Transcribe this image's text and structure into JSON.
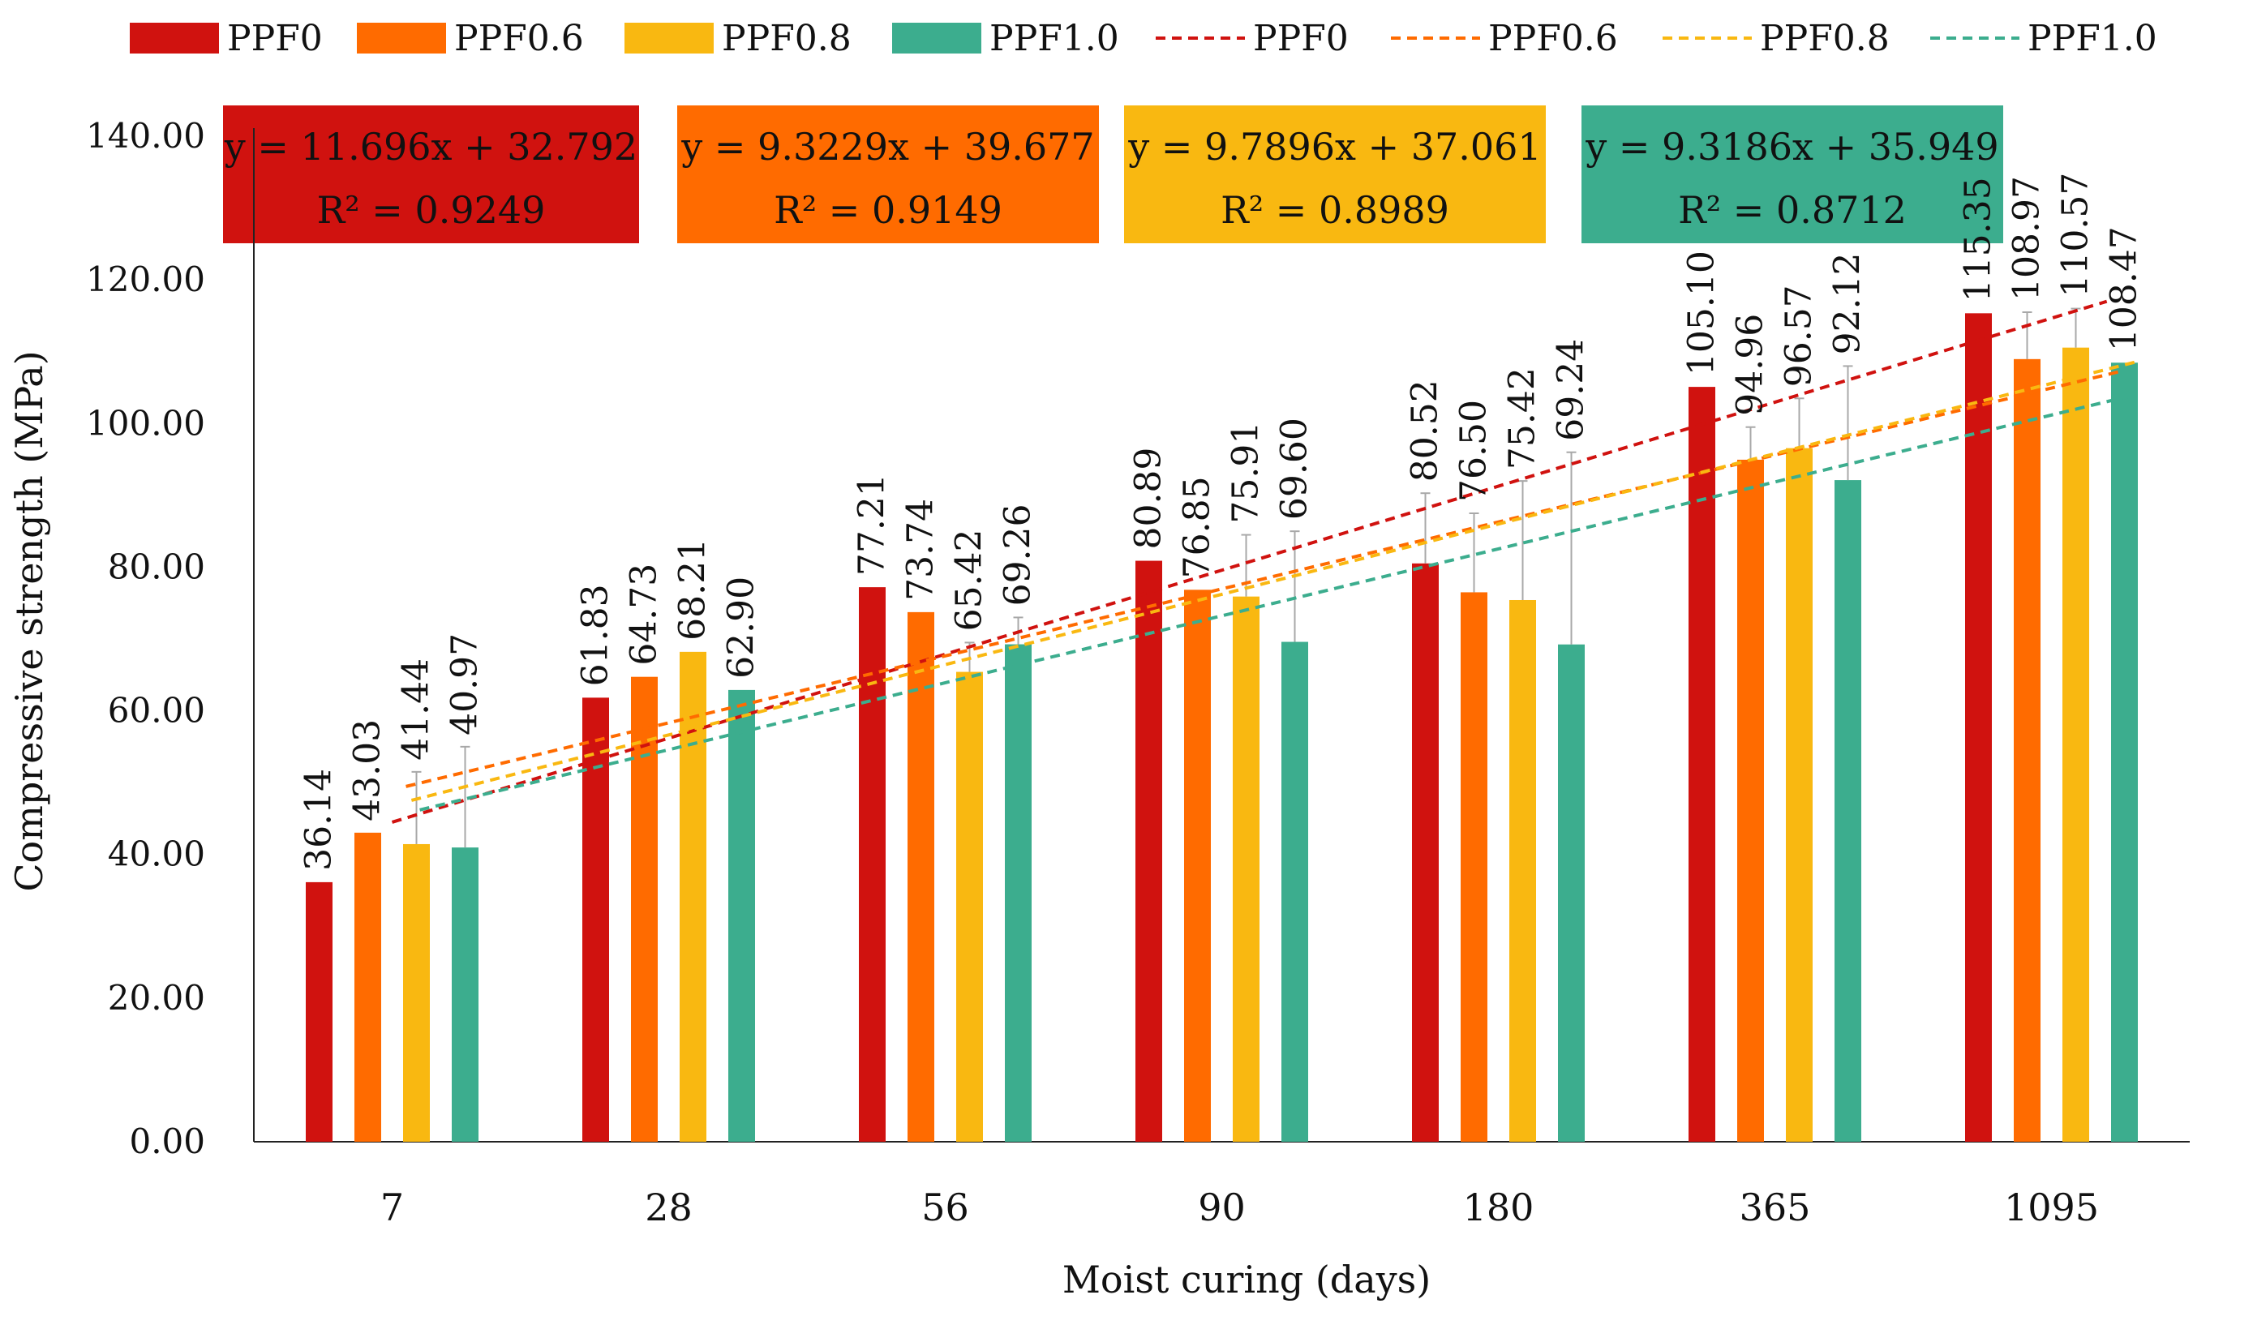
{
  "chart_data": {
    "type": "bar",
    "xlabel": "Moist curing (days)",
    "ylabel": "Compressive strength (MPa)",
    "ylim": [
      0,
      140
    ],
    "yticks": [
      0,
      20,
      40,
      60,
      80,
      100,
      120,
      140
    ],
    "ytick_labels": [
      "0.00",
      "20.00",
      "40.00",
      "60.00",
      "80.00",
      "100.00",
      "120.00",
      "140.00"
    ],
    "categories": [
      "7",
      "28",
      "56",
      "90",
      "180",
      "365",
      "1095"
    ],
    "series": [
      {
        "name": "PPF0",
        "color": "#D0120F",
        "values": [
          36.14,
          61.83,
          77.21,
          80.89,
          80.52,
          105.1,
          115.35
        ],
        "value_labels": [
          "36.14",
          "61.83",
          "77.21",
          "80.89",
          "80.52",
          "105.10",
          "115.35"
        ],
        "error_top": [
          36.14,
          61.83,
          77.21,
          80.89,
          90.3,
          105.1,
          115.35
        ]
      },
      {
        "name": "PPF0.6",
        "color": "#FF6B00",
        "values": [
          43.03,
          64.73,
          73.74,
          76.85,
          76.5,
          94.96,
          108.97
        ],
        "value_labels": [
          "43.03",
          "64.73",
          "73.74",
          "76.85",
          "76.50",
          "94.96",
          "108.97"
        ],
        "error_top": [
          43.03,
          64.73,
          73.74,
          76.85,
          87.5,
          99.5,
          115.5
        ]
      },
      {
        "name": "PPF0.8",
        "color": "#F9B811",
        "values": [
          41.44,
          68.21,
          65.42,
          75.91,
          75.42,
          96.57,
          110.57
        ],
        "value_labels": [
          "41.44",
          "68.21",
          "65.42",
          "75.91",
          "75.42",
          "96.57",
          "110.57"
        ],
        "error_top": [
          51.5,
          68.21,
          69.5,
          84.5,
          92.0,
          103.5,
          116.0
        ]
      },
      {
        "name": "PPF1.0",
        "color": "#3CAD8E",
        "values": [
          40.97,
          62.9,
          69.26,
          69.6,
          69.24,
          92.12,
          108.47
        ],
        "value_labels": [
          "40.97",
          "62.90",
          "69.26",
          "69.60",
          "69.24",
          "92.12",
          "108.47"
        ],
        "error_top": [
          55.0,
          62.9,
          73.0,
          85.0,
          96.0,
          108.0,
          108.47
        ]
      }
    ],
    "trendlines": [
      {
        "name": "PPF0",
        "color": "#D0120F",
        "slope": 11.696,
        "intercept": 32.792,
        "equation": "y = 11.696x + 32.792",
        "r2": "R² = 0.9249"
      },
      {
        "name": "PPF0.6",
        "color": "#FF6B00",
        "slope": 9.3229,
        "intercept": 39.677,
        "equation": "y = 9.3229x + 39.677",
        "r2": "R² = 0.9149"
      },
      {
        "name": "PPF0.8",
        "color": "#F9B811",
        "slope": 9.7896,
        "intercept": 37.061,
        "equation": "y = 9.7896x + 37.061",
        "r2": "R² = 0.8989"
      },
      {
        "name": "PPF1.0",
        "color": "#3CAD8E",
        "slope": 9.3186,
        "intercept": 35.949,
        "equation": "y = 9.3186x + 35.949",
        "r2": "R² = 0.8712"
      }
    ],
    "legend": {
      "position": "top",
      "bar_entries": [
        "PPF0",
        "PPF0.6",
        "PPF0.8",
        "PPF1.0"
      ],
      "line_entries": [
        "PPF0",
        "PPF0.6",
        "PPF0.8",
        "PPF1.0"
      ]
    },
    "grid": false
  }
}
